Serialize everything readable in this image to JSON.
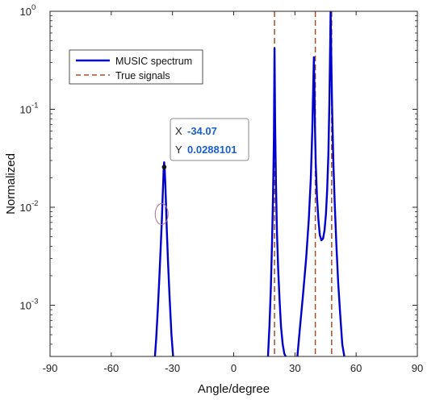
{
  "chart_data": {
    "type": "line",
    "title": "",
    "xlabel": "Angle/degree",
    "ylabel": "Normalized",
    "xlim": [
      -90,
      90
    ],
    "ylim": [
      0.0003,
      1
    ],
    "yscale": "log",
    "grid": false,
    "legend_position": "top-left",
    "x_ticks": [
      -90,
      -60,
      -30,
      0,
      30,
      60,
      90
    ],
    "x_tick_labels": [
      "-90",
      "-60",
      "-30",
      "0",
      "30",
      "60",
      "90"
    ],
    "y_ticks": [
      0.001,
      0.01,
      0.1,
      1
    ],
    "y_tick_labels": [
      {
        "base": "10",
        "exp": "-3"
      },
      {
        "base": "10",
        "exp": "-2"
      },
      {
        "base": "10",
        "exp": "-1"
      },
      {
        "base": "10",
        "exp": "0"
      }
    ],
    "series": [
      {
        "name": "MUSIC spectrum",
        "color": "#0000cc",
        "style": "solid",
        "x": [
          -38.6,
          -38,
          -37.2,
          -36.5,
          -35.8,
          -35.2,
          -34.8,
          -34.5,
          -34.3,
          -34.07,
          -33.8,
          -33.5,
          -33.2,
          -32.8,
          -32.2,
          -31.5,
          -30.5,
          -29.7,
          16.8,
          17.5,
          18.2,
          18.8,
          19.3,
          19.7,
          20.0,
          20.3,
          20.7,
          21.2,
          21.8,
          22.5,
          23.2,
          24.0,
          24.8,
          25.5,
          31.2,
          32.5,
          34,
          35.5,
          36.8,
          37.8,
          38.5,
          39.0,
          39.3,
          39.5,
          39.8,
          40.2,
          40.8,
          41.5,
          42.2,
          43,
          43.8,
          44.5,
          45.2,
          45.8,
          46.4,
          46.9,
          47.2,
          47.5,
          47.8,
          48.2,
          48.8,
          49.5,
          50.3,
          51.2,
          52.2,
          53.2,
          54.2
        ],
        "y": [
          0.0003,
          0.00045,
          0.0009,
          0.0018,
          0.0038,
          0.0075,
          0.013,
          0.019,
          0.025,
          0.0288101,
          0.024,
          0.017,
          0.011,
          0.006,
          0.0028,
          0.0013,
          0.0005,
          0.0003,
          0.0003,
          0.0006,
          0.0015,
          0.0045,
          0.014,
          0.05,
          0.42,
          0.07,
          0.018,
          0.0055,
          0.0023,
          0.0011,
          0.0006,
          0.0004,
          0.00032,
          0.0003,
          0.0003,
          0.0006,
          0.0013,
          0.003,
          0.0075,
          0.02,
          0.06,
          0.18,
          0.34,
          0.2,
          0.07,
          0.028,
          0.013,
          0.0075,
          0.0052,
          0.0046,
          0.0048,
          0.0058,
          0.0085,
          0.015,
          0.035,
          0.12,
          0.35,
          1.0,
          0.35,
          0.11,
          0.03,
          0.011,
          0.0042,
          0.0017,
          0.0008,
          0.0004,
          0.0003
        ]
      },
      {
        "name": "True signals",
        "color": "#a0522d",
        "style": "dashed",
        "x": [
          20,
          40,
          48
        ]
      }
    ],
    "annotations": [
      {
        "type": "datatip",
        "x_label": "X",
        "x_value": "-34.07",
        "y_label": "Y",
        "y_value": "0.0288101",
        "at_x": -34.07,
        "at_y": 0.0288101
      },
      {
        "type": "ellipse",
        "at_x": -35.3,
        "at_y": 0.0085
      }
    ]
  }
}
